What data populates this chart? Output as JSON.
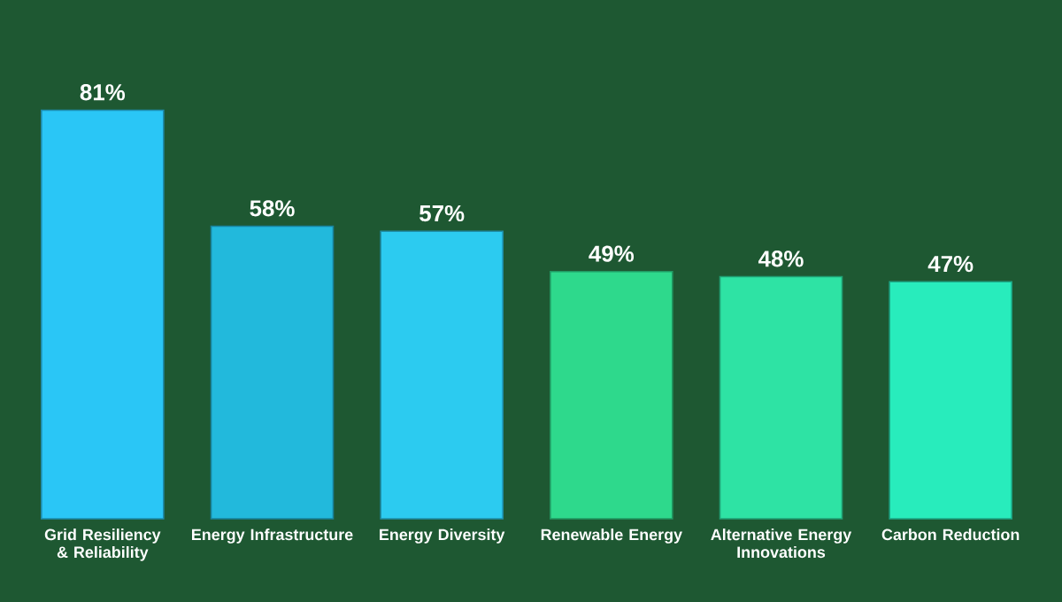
{
  "chart_data": {
    "type": "bar",
    "categories": [
      "Grid Resiliency & Reliability",
      "Energy Infrastructure",
      "Energy Diversity",
      "Renewable Energy",
      "Alternative Energy Innovations",
      "Carbon Reduction"
    ],
    "values": [
      81,
      58,
      57,
      49,
      48,
      47
    ],
    "value_labels": [
      "81%",
      "58%",
      "57%",
      "49%",
      "48%",
      "47%"
    ],
    "colors": [
      "#2ac6f6",
      "#22b9dc",
      "#2ccbf0",
      "#2ed98c",
      "#2ee3a4",
      "#28ecbc"
    ]
  }
}
